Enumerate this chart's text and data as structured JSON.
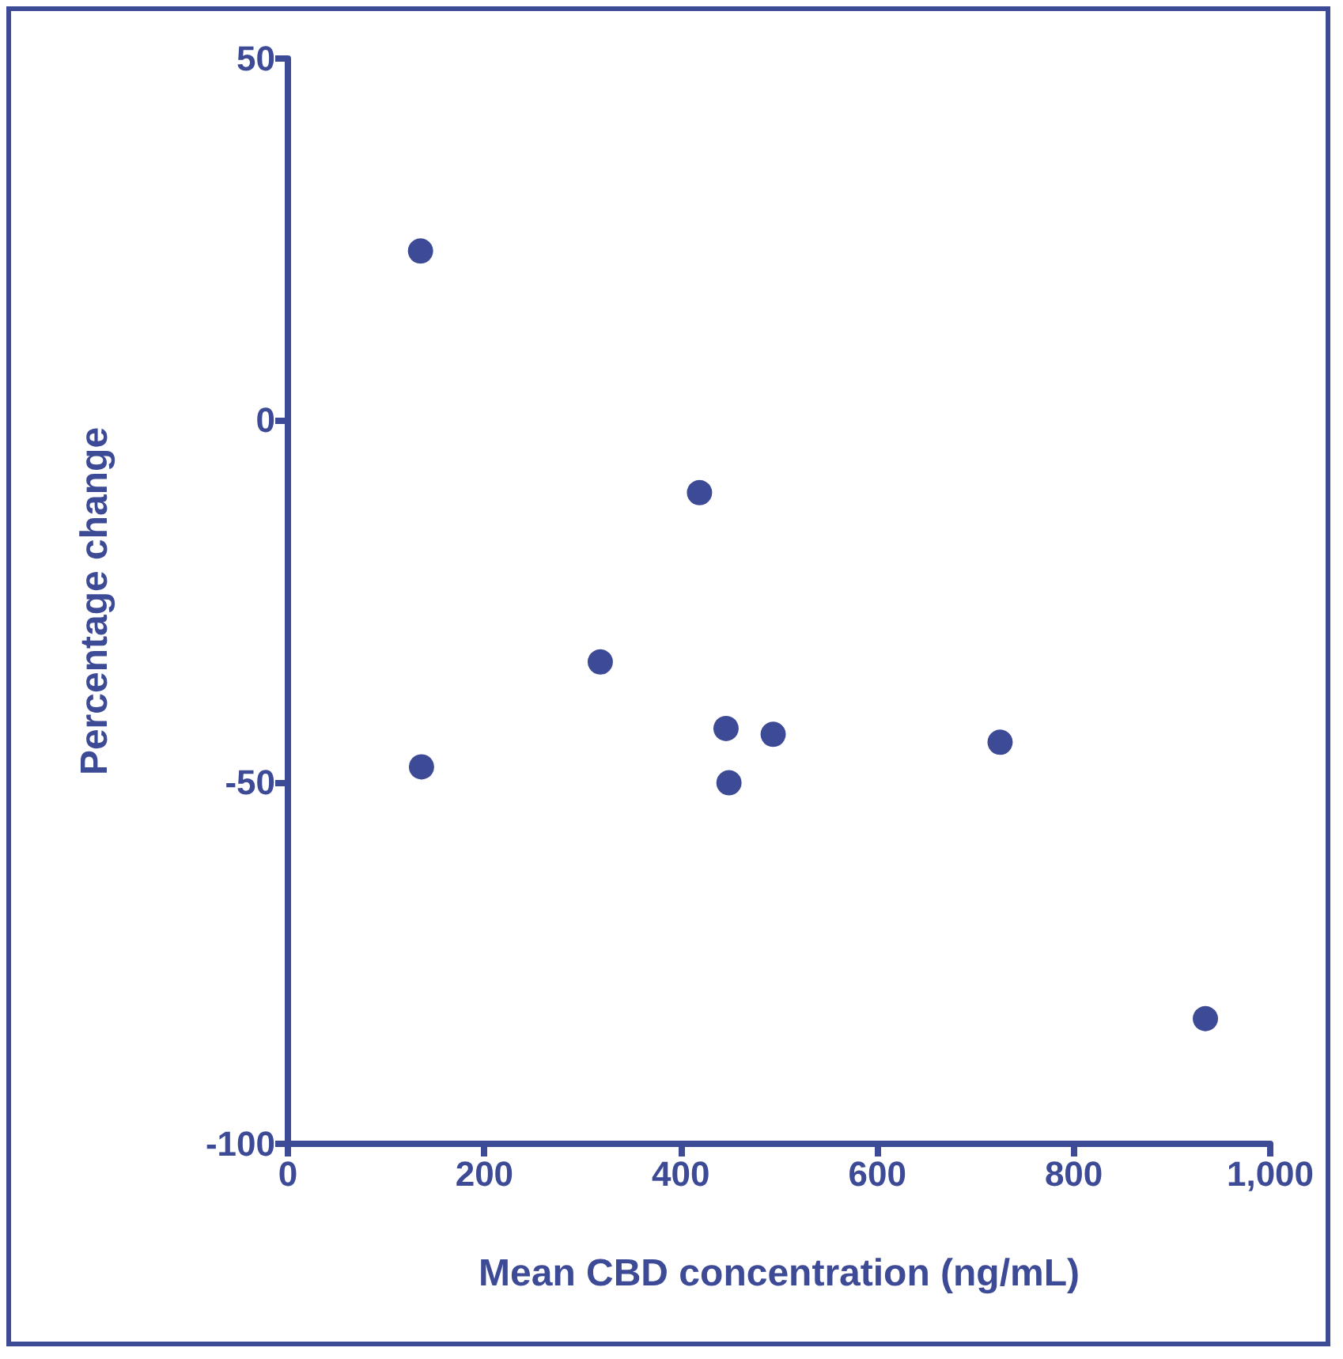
{
  "chart_data": {
    "type": "scatter",
    "xlabel": "Mean CBD concentration (ng/mL)",
    "ylabel": "Percentage change",
    "x": [
      135,
      136,
      318,
      419,
      446,
      449,
      494,
      725,
      934
    ],
    "values": [
      23.4,
      -47.9,
      -33.4,
      -10,
      -42.6,
      -50.1,
      -43.4,
      -44.5,
      -82.7
    ],
    "color": "#3d4a96",
    "marker": "circle",
    "grid": false,
    "xlim": [
      0,
      1000
    ],
    "xticks": [
      0,
      200,
      400,
      600,
      800,
      {
        "value": 1000,
        "label": "1,000"
      }
    ],
    "ylim": [
      -100,
      50
    ],
    "yticks": [
      -100,
      -50,
      0,
      50
    ]
  }
}
